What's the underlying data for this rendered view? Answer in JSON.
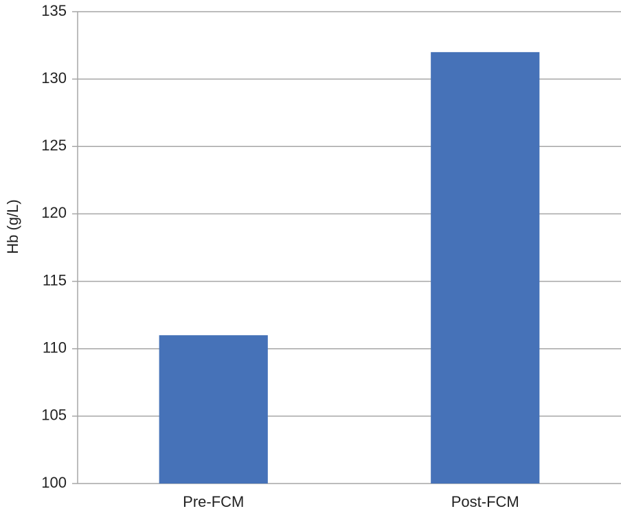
{
  "chart_data": {
    "type": "bar",
    "y_label": "Hb (g/L)",
    "categories": [
      "Pre-FCM",
      "Post-FCM"
    ],
    "values": [
      111,
      132
    ],
    "color": "#4672b8",
    "ylim": [
      100,
      135
    ],
    "yticks": [
      100,
      105,
      110,
      115,
      120,
      125,
      130,
      135
    ],
    "grid": true
  }
}
